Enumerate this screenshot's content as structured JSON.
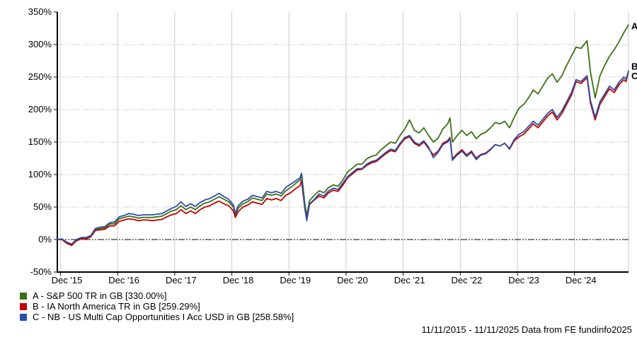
{
  "chart_data": {
    "type": "line",
    "title": "",
    "xlabel": "",
    "ylabel": "",
    "x_unit": "months since 2015-11-11",
    "xlim_months": [
      0,
      120
    ],
    "ylim": [
      -50,
      350
    ],
    "grid": true,
    "zero_line": 0,
    "yticks": [
      {
        "v": 350,
        "label": "350%"
      },
      {
        "v": 300,
        "label": "300%"
      },
      {
        "v": 250,
        "label": "250%"
      },
      {
        "v": 200,
        "label": "200%"
      },
      {
        "v": 150,
        "label": "150%"
      },
      {
        "v": 100,
        "label": "100%"
      },
      {
        "v": 50,
        "label": "50%"
      },
      {
        "v": 0,
        "label": "0%"
      },
      {
        "v": -50,
        "label": "-50%"
      }
    ],
    "xticks": [
      {
        "m": 0.66,
        "label": "Dec '15"
      },
      {
        "m": 12.66,
        "label": "Dec '16"
      },
      {
        "m": 24.66,
        "label": "Dec '17"
      },
      {
        "m": 36.66,
        "label": "Dec '18"
      },
      {
        "m": 48.66,
        "label": "Dec '19"
      },
      {
        "m": 60.66,
        "label": "Dec '20"
      },
      {
        "m": 72.66,
        "label": "Dec '21"
      },
      {
        "m": 84.66,
        "label": "Dec '22"
      },
      {
        "m": 96.66,
        "label": "Dec '23"
      },
      {
        "m": 108.66,
        "label": "Dec '24"
      }
    ],
    "x_months": [
      0,
      1,
      2,
      3,
      4,
      5,
      6,
      7,
      8,
      9,
      10,
      11,
      12,
      13,
      14,
      15,
      16,
      17,
      18,
      19,
      20,
      21,
      22,
      23,
      24,
      25,
      26,
      27,
      28,
      29,
      30,
      31,
      32,
      33,
      34,
      35,
      36,
      37,
      37.4,
      38,
      39,
      40,
      41,
      42,
      43,
      44,
      45,
      46,
      47,
      48,
      49,
      50,
      51,
      51.3,
      52,
      52.4,
      53,
      54,
      55,
      56,
      57,
      58,
      59,
      60,
      61,
      62,
      63,
      64,
      65,
      66,
      67,
      68,
      69,
      70,
      71,
      72,
      73,
      74,
      75,
      76,
      77,
      78,
      79,
      80,
      81,
      82,
      82.5,
      83,
      84,
      85,
      86,
      87,
      88,
      89,
      90,
      91,
      92,
      93,
      94,
      95,
      96,
      97,
      98,
      99,
      100,
      101,
      102,
      103,
      104,
      105,
      106,
      107,
      108,
      109,
      110,
      111,
      111.3,
      112,
      113,
      114,
      115,
      116,
      117,
      118,
      119,
      119.5,
      120
    ],
    "series": [
      {
        "id": "A",
        "name": "S&P 500 TR in GB",
        "final_value_label": "330.00%",
        "end_marker": "A",
        "color": "#3d7013",
        "values": [
          0,
          0,
          -5,
          -8,
          -1,
          2,
          2,
          5,
          16,
          17,
          18,
          24,
          24,
          32,
          34,
          36,
          35,
          33,
          34,
          34,
          34,
          35,
          36,
          40,
          44,
          46,
          52,
          46,
          50,
          46,
          52,
          56,
          58,
          62,
          66,
          62,
          58,
          50,
          38,
          48,
          55,
          58,
          64,
          62,
          60,
          70,
          68,
          70,
          67,
          75,
          80,
          86,
          92,
          102,
          55,
          37,
          60,
          68,
          75,
          72,
          80,
          84,
          82,
          92,
          104,
          110,
          116,
          116,
          124,
          128,
          130,
          138,
          144,
          150,
          148,
          160,
          170,
          184,
          168,
          164,
          172,
          160,
          150,
          156,
          170,
          178,
          187,
          150,
          160,
          168,
          160,
          166,
          155,
          162,
          165,
          172,
          180,
          178,
          182,
          172,
          188,
          202,
          208,
          218,
          230,
          224,
          236,
          248,
          255,
          242,
          252,
          268,
          282,
          296,
          294,
          303,
          306,
          258,
          218,
          252,
          268,
          282,
          292,
          304,
          318,
          324,
          330
        ]
      },
      {
        "id": "B",
        "name": "IA North America TR in GB",
        "final_value_label": "259.29%",
        "end_marker": "B",
        "color": "#c00000",
        "values": [
          0,
          0,
          -6,
          -9,
          -2,
          1,
          1,
          4,
          14,
          15,
          16,
          21,
          21,
          28,
          30,
          32,
          31,
          29,
          30,
          30,
          29,
          30,
          31,
          35,
          38,
          40,
          46,
          40,
          44,
          40,
          46,
          50,
          52,
          56,
          59,
          55,
          52,
          44,
          34,
          43,
          50,
          53,
          58,
          56,
          54,
          63,
          61,
          63,
          60,
          68,
          72,
          78,
          83,
          91,
          48,
          33,
          54,
          61,
          67,
          64,
          72,
          76,
          74,
          84,
          95,
          101,
          107,
          108,
          114,
          118,
          120,
          126,
          132,
          137,
          135,
          146,
          155,
          158,
          148,
          144,
          150,
          140,
          130,
          136,
          148,
          152,
          157,
          124,
          132,
          138,
          130,
          136,
          125,
          131,
          133,
          139,
          146,
          144,
          148,
          139,
          152,
          158,
          162,
          170,
          178,
          172,
          181,
          190,
          196,
          184,
          194,
          208,
          222,
          243,
          240,
          247,
          249,
          210,
          184,
          208,
          220,
          232,
          226,
          238,
          246,
          243,
          259.29
        ]
      },
      {
        "id": "C",
        "name": "NB - US Multi Cap Opportunities I Acc USD in GB",
        "final_value_label": "258.58%",
        "end_marker": "C",
        "color": "#2b4ea8",
        "values": [
          0,
          1,
          -4,
          -7,
          0,
          3,
          3,
          6,
          17,
          19,
          20,
          26,
          27,
          35,
          37,
          40,
          39,
          37,
          38,
          38,
          38,
          39,
          40,
          44,
          48,
          51,
          58,
          51,
          55,
          51,
          57,
          61,
          63,
          67,
          71,
          66,
          62,
          53,
          40,
          52,
          59,
          62,
          68,
          66,
          64,
          74,
          72,
          74,
          71,
          80,
          85,
          90,
          95,
          102,
          48,
          29,
          55,
          62,
          70,
          67,
          75,
          79,
          77,
          87,
          97,
          103,
          109,
          109,
          116,
          120,
          122,
          128,
          134,
          139,
          137,
          148,
          157,
          160,
          150,
          146,
          152,
          142,
          126,
          134,
          146,
          150,
          155,
          122,
          130,
          136,
          128,
          134,
          123,
          130,
          132,
          138,
          146,
          144,
          148,
          140,
          154,
          162,
          166,
          174,
          182,
          176,
          185,
          194,
          200,
          188,
          198,
          212,
          226,
          246,
          243,
          250,
          252,
          214,
          188,
          212,
          224,
          236,
          230,
          242,
          250,
          247,
          258.58
        ]
      }
    ],
    "legend_position": "bottom-left"
  },
  "legend": {
    "items": [
      {
        "label": "A - S&P 500 TR in GB [330.00%]",
        "color": "#3d7013"
      },
      {
        "label": "B - IA North America TR in GB [259.29%]",
        "color": "#c00000"
      },
      {
        "label": "C - NB - US Multi Cap Opportunities I Acc USD in GB [258.58%]",
        "color": "#2b4ea8"
      }
    ]
  },
  "footer": {
    "text": "11/11/2015 - 11/11/2025 Data from FE fundinfo2025"
  }
}
